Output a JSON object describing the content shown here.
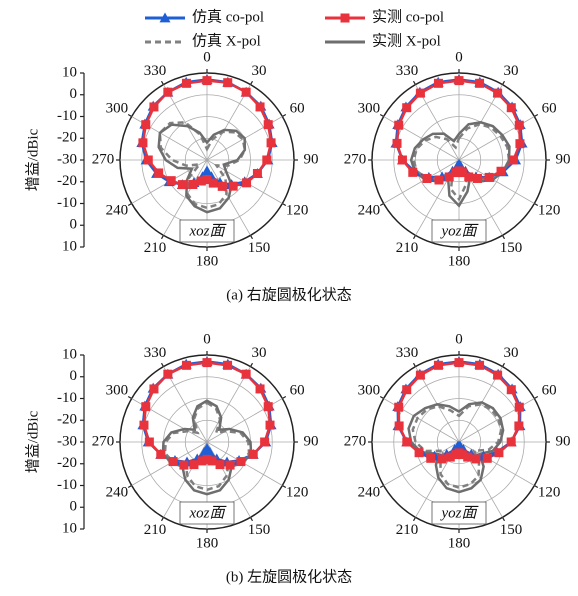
{
  "legend_series_names_from": "chart_data.0",
  "captions": [
    "(a) 右旋圆极化状态",
    "(b) 左旋圆极化状态"
  ],
  "chart_data": [
    {
      "type": "polar",
      "label": "xoz面",
      "ylabel": "增益/dBic",
      "rlim": [
        -30,
        10
      ],
      "rticks": [
        -30,
        -20,
        -10,
        0,
        10
      ],
      "thetaticks": [
        0,
        30,
        60,
        90,
        120,
        150,
        180,
        210,
        240,
        270,
        300,
        330
      ],
      "angles": [
        0,
        15,
        30,
        45,
        60,
        75,
        90,
        105,
        120,
        135,
        150,
        165,
        180,
        195,
        210,
        225,
        240,
        255,
        270,
        285,
        300,
        315,
        330,
        345
      ],
      "series": [
        {
          "name": "仿真 co-pol",
          "color": "#1f5fd6",
          "marker": "triangle",
          "dash": false,
          "values": [
            7,
            7,
            6,
            5,
            3,
            1,
            -2,
            -6,
            -10,
            -14,
            -18,
            -22,
            -25,
            -22,
            -18,
            -14,
            -10,
            -6,
            -2,
            1,
            3,
            5,
            6,
            7
          ]
        },
        {
          "name": "实测 co-pol",
          "color": "#e8323c",
          "marker": "square",
          "dash": false,
          "values": [
            6.5,
            6.8,
            6,
            4.5,
            2.5,
            0.5,
            -2.5,
            -6,
            -9,
            -13,
            -16,
            -19,
            -21,
            -20,
            -17,
            -14,
            -11,
            -7,
            -3,
            0.5,
            2.5,
            4.5,
            6,
            6.5
          ]
        },
        {
          "name": "仿真 X-pol",
          "color": "#808080",
          "marker": "none",
          "dash": true,
          "values": [
            -25,
            -20,
            -15,
            -12,
            -11,
            -12,
            -15,
            -20,
            -25,
            -18,
            -12,
            -9,
            -8,
            -9,
            -12,
            -18,
            -26,
            -20,
            -14,
            -8,
            -5,
            -6,
            -10,
            -18
          ]
        },
        {
          "name": "实测 X-pol",
          "color": "#6e6e6e",
          "marker": "none",
          "dash": false,
          "values": [
            -22,
            -18,
            -14,
            -11,
            -10,
            -12,
            -16,
            -22,
            -20,
            -14,
            -10,
            -7,
            -6,
            -8,
            -11,
            -17,
            -22,
            -16,
            -11,
            -7,
            -5,
            -7,
            -12,
            -17
          ]
        }
      ]
    },
    {
      "type": "polar",
      "label": "yoz面",
      "rlim": [
        -30,
        10
      ],
      "rticks": [
        -30,
        -20,
        -10,
        0,
        10
      ],
      "thetaticks": [
        0,
        30,
        60,
        90,
        120,
        150,
        180,
        210,
        240,
        270,
        300,
        330
      ],
      "angles": [
        0,
        15,
        30,
        45,
        60,
        75,
        90,
        105,
        120,
        135,
        150,
        165,
        180,
        195,
        210,
        225,
        240,
        255,
        270,
        285,
        300,
        315,
        330,
        345
      ],
      "series": [
        {
          "name": "仿真 co-pol",
          "color": "#1f5fd6",
          "marker": "triangle",
          "dash": false,
          "values": [
            7,
            7,
            6,
            4.5,
            2.5,
            0,
            -4,
            -9,
            -14,
            -19,
            -24,
            -27,
            -28,
            -27,
            -24,
            -19,
            -14,
            -9,
            -4,
            0,
            2.5,
            4.5,
            6,
            7
          ]
        },
        {
          "name": "实测 co-pol",
          "color": "#e8323c",
          "marker": "square",
          "dash": false,
          "values": [
            6.5,
            6.5,
            5.5,
            4,
            2,
            -1,
            -5,
            -10,
            -14,
            -18,
            -21,
            -24,
            -25,
            -24,
            -21,
            -17,
            -13,
            -8,
            -4,
            -0.5,
            2,
            4,
            5.5,
            6.5
          ]
        },
        {
          "name": "仿真 X-pol",
          "color": "#808080",
          "marker": "none",
          "dash": true,
          "values": [
            -20,
            -15,
            -11,
            -9,
            -8,
            -7,
            -7,
            -9,
            -12,
            -17,
            -22,
            -18,
            -12,
            -16,
            -24,
            -18,
            -13,
            -10,
            -9,
            -10,
            -12,
            -15,
            -19,
            -24
          ]
        },
        {
          "name": "实测 X-pol",
          "color": "#6e6e6e",
          "marker": "none",
          "dash": false,
          "values": [
            -18,
            -13,
            -10,
            -8,
            -7,
            -6,
            -7,
            -9,
            -12,
            -16,
            -20,
            -15,
            -9,
            -13,
            -20,
            -16,
            -12,
            -9,
            -8,
            -9,
            -11,
            -13,
            -16,
            -21
          ]
        }
      ]
    },
    {
      "type": "polar",
      "label": "xoz面",
      "ylabel": "增益/dBic",
      "rlim": [
        -30,
        10
      ],
      "rticks": [
        -30,
        -20,
        -10,
        0,
        10
      ],
      "thetaticks": [
        0,
        30,
        60,
        90,
        120,
        150,
        180,
        210,
        240,
        270,
        300,
        330
      ],
      "angles": [
        0,
        15,
        30,
        45,
        60,
        75,
        90,
        105,
        120,
        135,
        150,
        165,
        180,
        195,
        210,
        225,
        240,
        255,
        270,
        285,
        300,
        315,
        330,
        345
      ],
      "series": [
        {
          "name": "仿真 co-pol",
          "color": "#1f5fd6",
          "marker": "triangle",
          "dash": false,
          "values": [
            7,
            7,
            6,
            5,
            3,
            0.5,
            -3,
            -8,
            -13,
            -17,
            -21,
            -25,
            -27,
            -25,
            -21,
            -17,
            -13,
            -8,
            -3,
            0.5,
            3,
            5,
            6,
            7
          ]
        },
        {
          "name": "实测 co-pol",
          "color": "#e8323c",
          "marker": "square",
          "dash": false,
          "values": [
            6.5,
            6.5,
            6,
            4.5,
            2.5,
            0,
            -3.5,
            -8,
            -12,
            -15,
            -18,
            -21,
            -22,
            -21,
            -18,
            -15,
            -12,
            -8,
            -3.5,
            0,
            2.5,
            4.5,
            6,
            6.5
          ]
        },
        {
          "name": "仿真 X-pol",
          "color": "#808080",
          "marker": "none",
          "dash": true,
          "values": [
            -12,
            -14,
            -18,
            -24,
            -20,
            -14,
            -11,
            -10,
            -12,
            -16,
            -12,
            -9,
            -8,
            -9,
            -12,
            -16,
            -12,
            -10,
            -11,
            -14,
            -20,
            -24,
            -18,
            -14
          ]
        },
        {
          "name": "实测 X-pol",
          "color": "#6e6e6e",
          "marker": "none",
          "dash": false,
          "values": [
            -11,
            -13,
            -17,
            -22,
            -18,
            -13,
            -10,
            -9,
            -11,
            -14,
            -10,
            -7,
            -6,
            -7,
            -10,
            -14,
            -11,
            -9,
            -10,
            -13,
            -18,
            -22,
            -17,
            -13
          ]
        }
      ]
    },
    {
      "type": "polar",
      "label": "yoz面",
      "rlim": [
        -30,
        10
      ],
      "rticks": [
        -30,
        -20,
        -10,
        0,
        10
      ],
      "thetaticks": [
        0,
        30,
        60,
        90,
        120,
        150,
        180,
        210,
        240,
        270,
        300,
        330
      ],
      "angles": [
        0,
        15,
        30,
        45,
        60,
        75,
        90,
        105,
        120,
        135,
        150,
        165,
        180,
        195,
        210,
        225,
        240,
        255,
        270,
        285,
        300,
        315,
        330,
        345
      ],
      "series": [
        {
          "name": "仿真 co-pol",
          "color": "#1f5fd6",
          "marker": "triangle",
          "dash": false,
          "values": [
            7,
            7,
            6,
            4.5,
            2.5,
            -1,
            -6,
            -12,
            -17,
            -22,
            -26,
            -28,
            -28,
            -28,
            -26,
            -22,
            -17,
            -12,
            -6,
            -1,
            2.5,
            4.5,
            6,
            7
          ]
        },
        {
          "name": "实测 co-pol",
          "color": "#e8323c",
          "marker": "square",
          "dash": false,
          "values": [
            6.5,
            6.5,
            5.5,
            4,
            2,
            -1.5,
            -6,
            -11,
            -15,
            -19,
            -22,
            -24,
            -25,
            -24,
            -22,
            -19,
            -15,
            -11,
            -6,
            -1.5,
            2,
            4,
            5.5,
            6.5
          ]
        },
        {
          "name": "仿真 X-pol",
          "color": "#808080",
          "marker": "none",
          "dash": true,
          "values": [
            -18,
            -13,
            -10,
            -9,
            -9,
            -10,
            -12,
            -16,
            -22,
            -17,
            -12,
            -10,
            -9,
            -10,
            -13,
            -18,
            -22,
            -14,
            -10,
            -8,
            -8,
            -9,
            -11,
            -15
          ]
        },
        {
          "name": "实测 X-pol",
          "color": "#6e6e6e",
          "marker": "none",
          "dash": false,
          "values": [
            -16,
            -12,
            -9,
            -8,
            -8,
            -9,
            -11,
            -14,
            -19,
            -14,
            -10,
            -8,
            -7,
            -8,
            -11,
            -15,
            -19,
            -12,
            -8,
            -6,
            -6,
            -8,
            -10,
            -13
          ]
        }
      ]
    }
  ]
}
